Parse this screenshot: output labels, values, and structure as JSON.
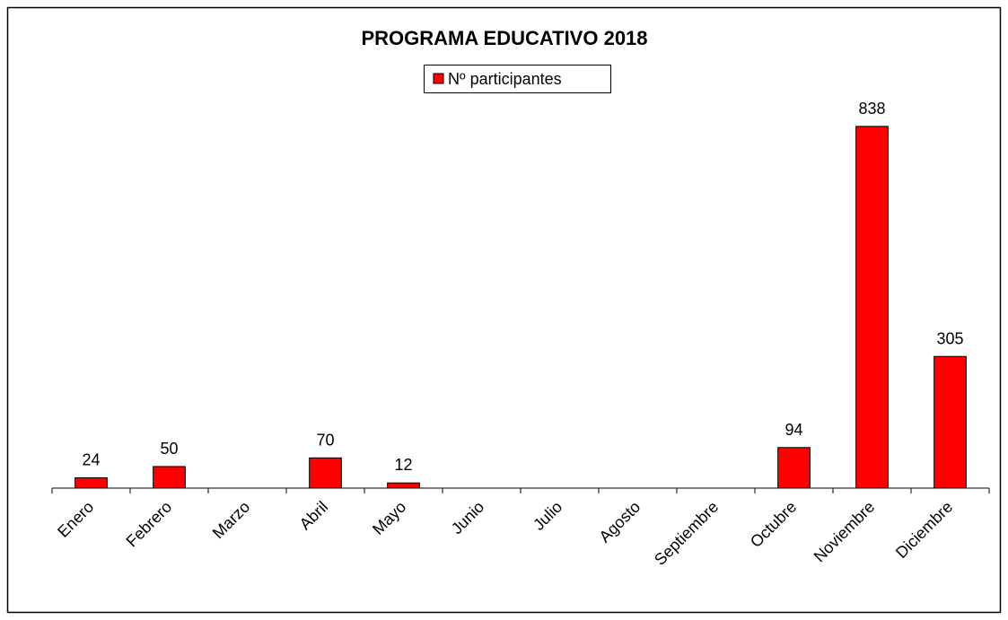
{
  "chart_data": {
    "type": "bar",
    "title": "PROGRAMA EDUCATIVO 2018",
    "categories": [
      "Enero",
      "Febrero",
      "Marzo",
      "Abril",
      "Mayo",
      "Junio",
      "Julio",
      "Agosto",
      "Septiembre",
      "Octubre",
      "Noviembre",
      "Diciembre"
    ],
    "series": [
      {
        "name": "Nº participantes",
        "color": "#ff0000",
        "values": [
          24,
          50,
          null,
          70,
          12,
          null,
          null,
          null,
          null,
          94,
          838,
          305
        ]
      }
    ],
    "ylim": [
      0,
      900
    ],
    "legend": "top"
  }
}
